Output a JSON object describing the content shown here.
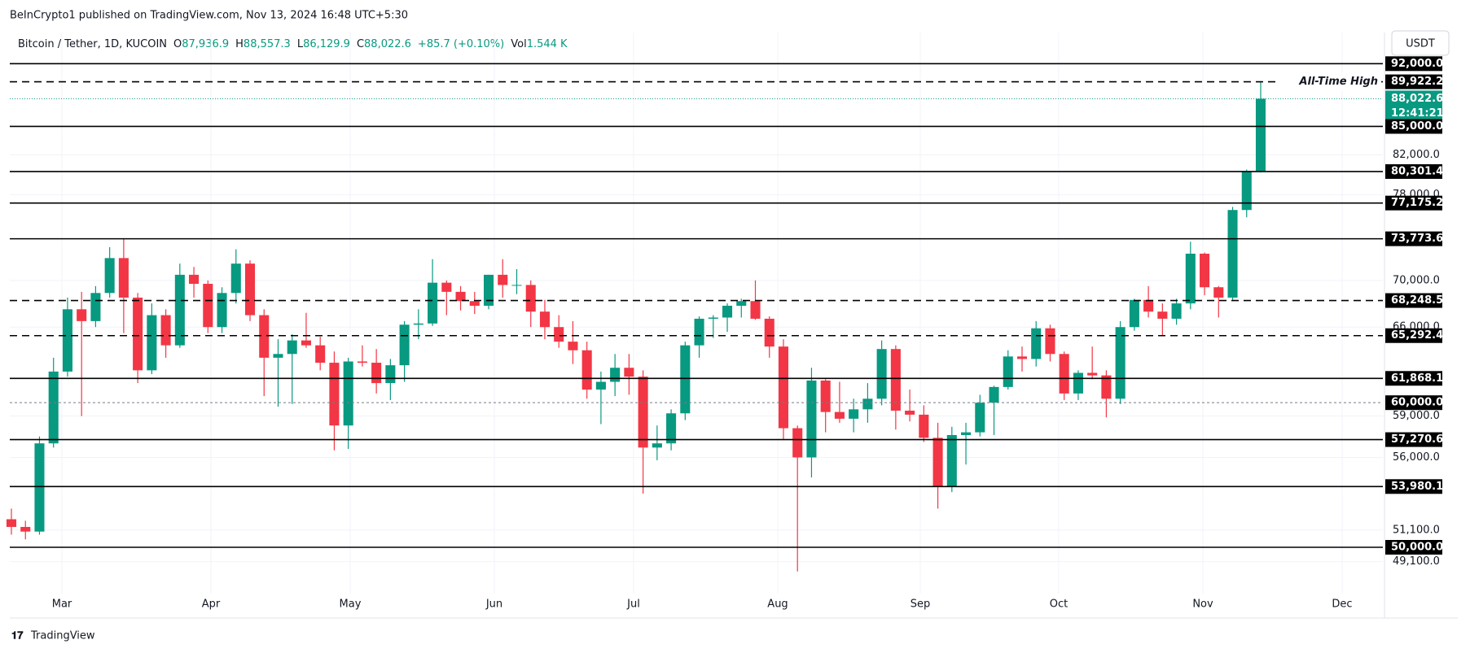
{
  "header": {
    "published": "BeInCrypto1 published on TradingView.com, Nov 13, 2024 16:48 UTC+5:30",
    "symbol": "Bitcoin / Tether, 1D, KUCOIN",
    "o_label": "O",
    "open": "87,936.9",
    "h_label": "H",
    "high": "88,557.3",
    "l_label": "L",
    "low": "86,129.9",
    "c_label": "C",
    "close": "88,022.6",
    "change": "+85.7 (+0.10%)",
    "vol_label": "Vol",
    "volume": "1.544 K",
    "currency": "USDT"
  },
  "footer": {
    "brand": "TradingView"
  },
  "chart_data": {
    "type": "candlestick",
    "log_scale": true,
    "ylim": [
      47550,
      93550
    ],
    "up_color": "#089981",
    "down_color": "#f23645",
    "xticks": [
      "Mar",
      "Apr",
      "May",
      "Jun",
      "Jul",
      "Aug",
      "Sep",
      "Oct",
      "Nov",
      "Dec"
    ],
    "yticks": [
      {
        "value": 82000,
        "label": "82,000.0"
      },
      {
        "value": 78000,
        "label": "78,000.0"
      },
      {
        "value": 70000,
        "label": "70,000.0"
      },
      {
        "value": 66000,
        "label": "66,000.0"
      },
      {
        "value": 59000,
        "label": "59,000.0"
      },
      {
        "value": 56000,
        "label": "56,000.0"
      },
      {
        "value": 51100,
        "label": "51,100.0"
      },
      {
        "value": 49100,
        "label": "49,100.0"
      }
    ],
    "levels": [
      {
        "value": 92000,
        "label": "92,000.0",
        "style": "solid"
      },
      {
        "value": 89922.2,
        "label": "89,922.2",
        "style": "dashed"
      },
      {
        "value": 85000,
        "label": "85,000.0",
        "style": "solid"
      },
      {
        "value": 80301.4,
        "label": "80,301.4",
        "style": "solid"
      },
      {
        "value": 77175.2,
        "label": "77,175.2",
        "style": "solid"
      },
      {
        "value": 73773.6,
        "label": "73,773.6",
        "style": "solid"
      },
      {
        "value": 68248.5,
        "label": "68,248.5",
        "style": "dashed"
      },
      {
        "value": 65292.4,
        "label": "65,292.4",
        "style": "dashed"
      },
      {
        "value": 61868.1,
        "label": "61,868.1",
        "style": "solid"
      },
      {
        "value": 60000,
        "label": "60,000.0",
        "style": "dotted"
      },
      {
        "value": 57270.6,
        "label": "57,270.6",
        "style": "solid"
      },
      {
        "value": 53980.1,
        "label": "53,980.1",
        "style": "solid"
      },
      {
        "value": 50000,
        "label": "50,000.0",
        "style": "solid"
      }
    ],
    "annotation": "All-Time High",
    "last_price": {
      "value": 88022.6,
      "label": "88,022.6",
      "countdown": "12:41:21",
      "color": "#089981"
    },
    "ohlc": [
      [
        51800,
        52500,
        50800,
        51300
      ],
      [
        51300,
        51700,
        50500,
        51000
      ],
      [
        51000,
        57500,
        50800,
        57000
      ],
      [
        57000,
        63500,
        56700,
        62400
      ],
      [
        62400,
        68500,
        62000,
        67500
      ],
      [
        67500,
        69000,
        59000,
        66500
      ],
      [
        66500,
        69500,
        66000,
        68900
      ],
      [
        68900,
        73000,
        68500,
        72000
      ],
      [
        72000,
        73800,
        65500,
        68500
      ],
      [
        68500,
        68900,
        61500,
        62500
      ],
      [
        62500,
        68000,
        62200,
        67000
      ],
      [
        67000,
        67500,
        63500,
        64500
      ],
      [
        64500,
        71500,
        64300,
        70500
      ],
      [
        70500,
        71200,
        68500,
        69700
      ],
      [
        69700,
        70000,
        65500,
        66000
      ],
      [
        66000,
        69400,
        65500,
        68900
      ],
      [
        68900,
        72800,
        68000,
        71500
      ],
      [
        71500,
        71800,
        66500,
        67000
      ],
      [
        67000,
        67500,
        60500,
        63500
      ],
      [
        63500,
        65000,
        59700,
        63800
      ],
      [
        63800,
        65400,
        59900,
        64900
      ],
      [
        64900,
        67200,
        64300,
        64500
      ],
      [
        64500,
        65200,
        62500,
        63100
      ],
      [
        63100,
        64000,
        56500,
        58300
      ],
      [
        58300,
        63500,
        56600,
        63200
      ],
      [
        63200,
        64500,
        62800,
        63100
      ],
      [
        63100,
        64200,
        60700,
        61500
      ],
      [
        61500,
        63400,
        60200,
        62900
      ],
      [
        62900,
        66500,
        61600,
        66200
      ],
      [
        66200,
        67500,
        65000,
        66300
      ],
      [
        66300,
        71900,
        66100,
        69800
      ],
      [
        69800,
        70000,
        67000,
        69000
      ],
      [
        69000,
        69500,
        67400,
        68200
      ],
      [
        68200,
        69000,
        67100,
        67800
      ],
      [
        67800,
        70500,
        67500,
        70500
      ],
      [
        70500,
        71900,
        68500,
        69600
      ],
      [
        69600,
        71000,
        68800,
        69600
      ],
      [
        69600,
        70000,
        66000,
        67300
      ],
      [
        67300,
        68300,
        65000,
        66000
      ],
      [
        66000,
        67000,
        64300,
        64800
      ],
      [
        64800,
        66500,
        63000,
        64100
      ],
      [
        64100,
        64800,
        60300,
        61000
      ],
      [
        61000,
        62400,
        58400,
        61600
      ],
      [
        61600,
        63800,
        60500,
        62700
      ],
      [
        62700,
        63800,
        60600,
        62000
      ],
      [
        62000,
        62500,
        53500,
        56700
      ],
      [
        56700,
        58300,
        55800,
        57000
      ],
      [
        57000,
        59500,
        56500,
        59200
      ],
      [
        59200,
        64800,
        58700,
        64500
      ],
      [
        64500,
        66900,
        63500,
        66700
      ],
      [
        66700,
        67000,
        65100,
        66800
      ],
      [
        66800,
        68000,
        65600,
        67800
      ],
      [
        67800,
        68400,
        66800,
        68200
      ],
      [
        68200,
        70000,
        66600,
        66700
      ],
      [
        66700,
        66900,
        63500,
        64400
      ],
      [
        64400,
        65000,
        57300,
        58100
      ],
      [
        58100,
        58300,
        48500,
        56000
      ],
      [
        56000,
        62700,
        54600,
        61700
      ],
      [
        61700,
        61800,
        57800,
        59300
      ],
      [
        59300,
        61600,
        58500,
        58800
      ],
      [
        58800,
        60300,
        57800,
        59500
      ],
      [
        59500,
        61500,
        58500,
        60300
      ],
      [
        60300,
        64900,
        59800,
        64200
      ],
      [
        64200,
        64500,
        58000,
        59400
      ],
      [
        59400,
        61000,
        58600,
        59100
      ],
      [
        59100,
        59800,
        57100,
        57400
      ],
      [
        57400,
        58500,
        52500,
        54000
      ],
      [
        54000,
        58200,
        53600,
        57600
      ],
      [
        57600,
        58500,
        55500,
        57800
      ],
      [
        57800,
        60600,
        57500,
        60000
      ],
      [
        60000,
        61300,
        57600,
        61200
      ],
      [
        61200,
        64100,
        61000,
        63600
      ],
      [
        63600,
        64400,
        62400,
        63400
      ],
      [
        63400,
        66500,
        62800,
        65900
      ],
      [
        65900,
        66200,
        63200,
        63800
      ],
      [
        63800,
        64000,
        60200,
        60700
      ],
      [
        60700,
        62500,
        60200,
        62300
      ],
      [
        62300,
        64400,
        61800,
        62100
      ],
      [
        62100,
        62500,
        58900,
        60300
      ],
      [
        60300,
        66500,
        59900,
        66000
      ],
      [
        66000,
        68400,
        65700,
        68300
      ],
      [
        68300,
        69500,
        66800,
        67300
      ],
      [
        67300,
        68000,
        65300,
        66700
      ],
      [
        66700,
        68400,
        66200,
        68000
      ],
      [
        68000,
        73500,
        67500,
        72400
      ],
      [
        72400,
        72500,
        68700,
        69400
      ],
      [
        69400,
        69500,
        66800,
        68500
      ],
      [
        68500,
        76800,
        68300,
        76500
      ],
      [
        76500,
        80500,
        75800,
        80300
      ],
      [
        80300,
        89922.2,
        80200,
        88022.6
      ]
    ]
  }
}
